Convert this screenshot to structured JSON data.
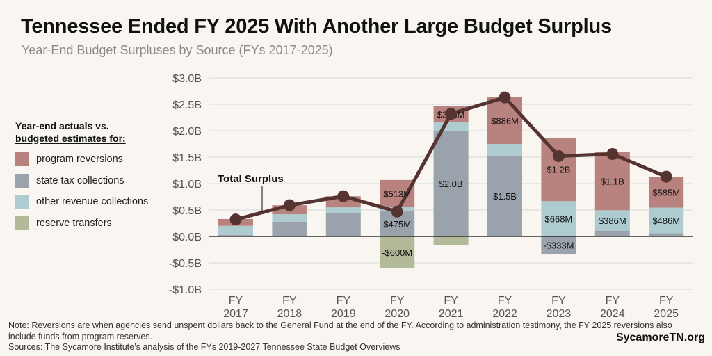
{
  "chart_data": {
    "type": "bar",
    "stacked": true,
    "title": "Tennessee Ended FY 2025 With Another Large Budget Surplus",
    "subtitle": "Year-End Budget Surpluses by Source (FYs 2017-2025)",
    "categories": [
      "FY 2017",
      "FY 2018",
      "FY 2019",
      "FY 2020",
      "FY 2021",
      "FY 2022",
      "FY 2023",
      "FY 2024",
      "FY 2025"
    ],
    "categories_lines": [
      [
        "FY",
        "2017"
      ],
      [
        "FY",
        "2018"
      ],
      [
        "FY",
        "2019"
      ],
      [
        "FY",
        "2020"
      ],
      [
        "FY",
        "2021"
      ],
      [
        "FY",
        "2022"
      ],
      [
        "FY",
        "2023"
      ],
      [
        "FY",
        "2024"
      ],
      [
        "FY",
        "2025"
      ]
    ],
    "ylim": [
      -1.0,
      3.0
    ],
    "yticks": [
      -1.0,
      -0.5,
      0,
      0.5,
      1.0,
      1.5,
      2.0,
      2.5,
      3.0
    ],
    "ytick_labels": [
      "-$1.0B",
      "-$0.5B",
      "$0.0B",
      "$0.5B",
      "$1.0B",
      "$1.5B",
      "$2.0B",
      "$2.5B",
      "$3.0B"
    ],
    "grid": true,
    "units": "billions of dollars",
    "legend_title": [
      "Year-end actuals vs.",
      "budgeted estimates for:"
    ],
    "legend_placement": "left",
    "series": [
      {
        "name": "state tax collections",
        "color": "#9aa3ab",
        "values": [
          0.03,
          0.28,
          0.44,
          0.475,
          2.0,
          1.53,
          -0.333,
          0.11,
          0.06
        ],
        "labels": [
          null,
          null,
          null,
          "$475M",
          "$2.0B",
          "$1.5B",
          "-$333M",
          null,
          null
        ]
      },
      {
        "name": "other revenue collections",
        "color": "#aecbcf",
        "values": [
          0.17,
          0.14,
          0.11,
          0.08,
          0.16,
          0.22,
          0.668,
          0.386,
          0.486
        ],
        "labels": [
          null,
          null,
          null,
          null,
          null,
          null,
          "$668M",
          "$386M",
          "$486M"
        ]
      },
      {
        "name": "program reversions",
        "color": "#b8837e",
        "values": [
          0.13,
          0.17,
          0.21,
          0.513,
          0.303,
          0.886,
          1.2,
          1.1,
          0.585
        ],
        "labels": [
          null,
          null,
          null,
          "$513M",
          "$303M",
          "$886M",
          "$1.2B",
          "$1.1B",
          "$585M"
        ]
      },
      {
        "name": "reserve transfers",
        "color": "#b3ba9a",
        "values": [
          0,
          0,
          0,
          -0.6,
          -0.17,
          0,
          0,
          0,
          0
        ],
        "labels": [
          null,
          null,
          null,
          "-$600M",
          null,
          null,
          null,
          null,
          null
        ]
      }
    ],
    "legend_order": [
      "program reversions",
      "state tax collections",
      "other revenue collections",
      "reserve transfers"
    ],
    "line": {
      "name": "Total Surplus",
      "color": "#553331",
      "values": [
        0.32,
        0.59,
        0.76,
        0.47,
        2.32,
        2.63,
        1.52,
        1.56,
        1.13
      ]
    }
  },
  "footer": {
    "note": "Note: Reversions are when agencies send unspent dollars back to the General Fund at the end of the FY. According to administration testimony, the FY 2025 reversions also include funds from program reserves.",
    "sources": "Sources: The Sycamore Institute’s analysis of the FYs 2019-2027 Tennessee State Budget Overviews",
    "brand": "SycamoreTN.org"
  }
}
